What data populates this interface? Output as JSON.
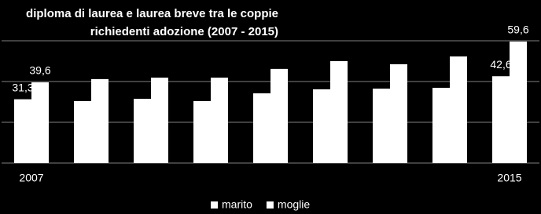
{
  "chart_data": {
    "type": "bar",
    "title": "diploma di laurea e laurea breve tra le coppie richiedenti adozione (2007 - 2015)",
    "categories": [
      "2007",
      null,
      null,
      null,
      null,
      null,
      null,
      null,
      "2015"
    ],
    "series": [
      {
        "name": "marito",
        "color": "#ffffff",
        "values": [
          31.3,
          30.4,
          31.5,
          30.4,
          34.2,
          36.2,
          36.5,
          36.9,
          42.6
        ],
        "value_labels": [
          "31,3",
          null,
          null,
          null,
          null,
          null,
          null,
          null,
          "42,6"
        ]
      },
      {
        "name": "moglie",
        "color": "#ffffff",
        "values": [
          39.6,
          41.2,
          41.9,
          41.9,
          46.2,
          50.0,
          48.5,
          52.3,
          59.6
        ],
        "value_labels": [
          "39,6",
          null,
          null,
          null,
          null,
          null,
          null,
          null,
          "59,6"
        ]
      }
    ],
    "ylim": [
      0,
      60
    ],
    "yticks": [
      0,
      20,
      40,
      60
    ],
    "ytick_labels": false,
    "grid": true,
    "grid_color": "#808080",
    "legend": "bottom"
  }
}
